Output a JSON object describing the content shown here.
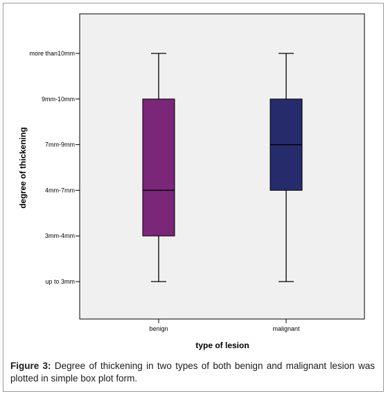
{
  "chart_data": {
    "type": "box",
    "xlabel": "type of lesion",
    "ylabel": "degree of thickening",
    "y_categories": [
      "up to 3mm",
      "3mm-4mm",
      "4mm-7mm",
      "7mm-9mm",
      "9mm-10mm",
      "more than10mm"
    ],
    "categories": [
      "benign",
      "malignant"
    ],
    "boxes": [
      {
        "category": "benign",
        "min": 0,
        "q1": 1,
        "median": 2,
        "q3": 4,
        "max": 5,
        "color": "#7a2679"
      },
      {
        "category": "malignant",
        "min": 0,
        "q1": 2,
        "median": 3,
        "q3": 4,
        "max": 5,
        "color": "#262c6b"
      }
    ],
    "plot_background": "#f0f0f0",
    "grid": false
  },
  "caption": {
    "label": "Figure 3:",
    "text": " Degree of thickening in two types of both benign and malignant lesion was plotted in simple box plot form."
  }
}
